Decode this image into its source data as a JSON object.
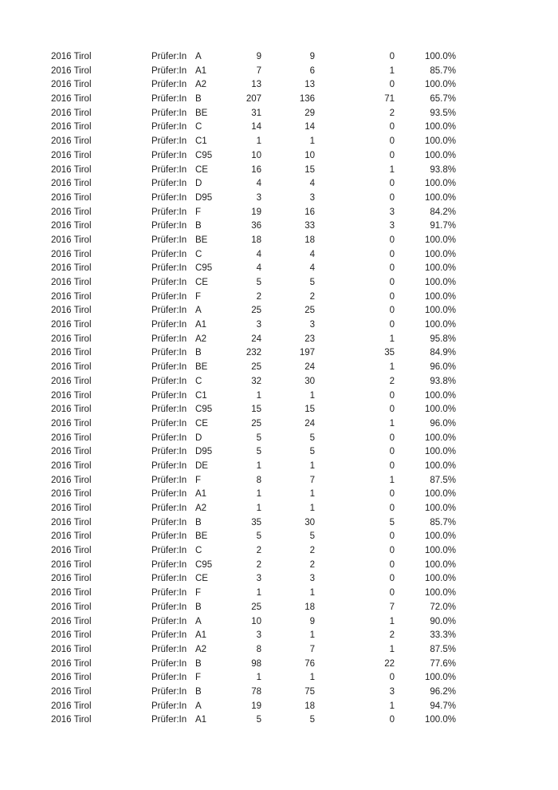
{
  "page": {
    "background_color": "#ffffff",
    "text_color": "#1d1d1d"
  },
  "table": {
    "columns": [
      "year_region",
      "examiner_label",
      "category",
      "num1",
      "num2",
      "num3",
      "percent"
    ],
    "rows": [
      [
        "2016 Tirol",
        "Prüfer:In",
        "A",
        "9",
        "9",
        "0",
        "100.0%"
      ],
      [
        "2016 Tirol",
        "Prüfer:In",
        "A1",
        "7",
        "6",
        "1",
        "85.7%"
      ],
      [
        "2016 Tirol",
        "Prüfer:In",
        "A2",
        "13",
        "13",
        "0",
        "100.0%"
      ],
      [
        "2016 Tirol",
        "Prüfer:In",
        "B",
        "207",
        "136",
        "71",
        "65.7%"
      ],
      [
        "2016 Tirol",
        "Prüfer:In",
        "BE",
        "31",
        "29",
        "2",
        "93.5%"
      ],
      [
        "2016 Tirol",
        "Prüfer:In",
        "C",
        "14",
        "14",
        "0",
        "100.0%"
      ],
      [
        "2016 Tirol",
        "Prüfer:In",
        "C1",
        "1",
        "1",
        "0",
        "100.0%"
      ],
      [
        "2016 Tirol",
        "Prüfer:In",
        "C95",
        "10",
        "10",
        "0",
        "100.0%"
      ],
      [
        "2016 Tirol",
        "Prüfer:In",
        "CE",
        "16",
        "15",
        "1",
        "93.8%"
      ],
      [
        "2016 Tirol",
        "Prüfer:In",
        "D",
        "4",
        "4",
        "0",
        "100.0%"
      ],
      [
        "2016 Tirol",
        "Prüfer:In",
        "D95",
        "3",
        "3",
        "0",
        "100.0%"
      ],
      [
        "2016 Tirol",
        "Prüfer:In",
        "F",
        "19",
        "16",
        "3",
        "84.2%"
      ],
      [
        "2016 Tirol",
        "Prüfer:In",
        "B",
        "36",
        "33",
        "3",
        "91.7%"
      ],
      [
        "2016 Tirol",
        "Prüfer:In",
        "BE",
        "18",
        "18",
        "0",
        "100.0%"
      ],
      [
        "2016 Tirol",
        "Prüfer:In",
        "C",
        "4",
        "4",
        "0",
        "100.0%"
      ],
      [
        "2016 Tirol",
        "Prüfer:In",
        "C95",
        "4",
        "4",
        "0",
        "100.0%"
      ],
      [
        "2016 Tirol",
        "Prüfer:In",
        "CE",
        "5",
        "5",
        "0",
        "100.0%"
      ],
      [
        "2016 Tirol",
        "Prüfer:In",
        "F",
        "2",
        "2",
        "0",
        "100.0%"
      ],
      [
        "2016 Tirol",
        "Prüfer:In",
        "A",
        "25",
        "25",
        "0",
        "100.0%"
      ],
      [
        "2016 Tirol",
        "Prüfer:In",
        "A1",
        "3",
        "3",
        "0",
        "100.0%"
      ],
      [
        "2016 Tirol",
        "Prüfer:In",
        "A2",
        "24",
        "23",
        "1",
        "95.8%"
      ],
      [
        "2016 Tirol",
        "Prüfer:In",
        "B",
        "232",
        "197",
        "35",
        "84.9%"
      ],
      [
        "2016 Tirol",
        "Prüfer:In",
        "BE",
        "25",
        "24",
        "1",
        "96.0%"
      ],
      [
        "2016 Tirol",
        "Prüfer:In",
        "C",
        "32",
        "30",
        "2",
        "93.8%"
      ],
      [
        "2016 Tirol",
        "Prüfer:In",
        "C1",
        "1",
        "1",
        "0",
        "100.0%"
      ],
      [
        "2016 Tirol",
        "Prüfer:In",
        "C95",
        "15",
        "15",
        "0",
        "100.0%"
      ],
      [
        "2016 Tirol",
        "Prüfer:In",
        "CE",
        "25",
        "24",
        "1",
        "96.0%"
      ],
      [
        "2016 Tirol",
        "Prüfer:In",
        "D",
        "5",
        "5",
        "0",
        "100.0%"
      ],
      [
        "2016 Tirol",
        "Prüfer:In",
        "D95",
        "5",
        "5",
        "0",
        "100.0%"
      ],
      [
        "2016 Tirol",
        "Prüfer:In",
        "DE",
        "1",
        "1",
        "0",
        "100.0%"
      ],
      [
        "2016 Tirol",
        "Prüfer:In",
        "F",
        "8",
        "7",
        "1",
        "87.5%"
      ],
      [
        "2016 Tirol",
        "Prüfer:In",
        "A1",
        "1",
        "1",
        "0",
        "100.0%"
      ],
      [
        "2016 Tirol",
        "Prüfer:In",
        "A2",
        "1",
        "1",
        "0",
        "100.0%"
      ],
      [
        "2016 Tirol",
        "Prüfer:In",
        "B",
        "35",
        "30",
        "5",
        "85.7%"
      ],
      [
        "2016 Tirol",
        "Prüfer:In",
        "BE",
        "5",
        "5",
        "0",
        "100.0%"
      ],
      [
        "2016 Tirol",
        "Prüfer:In",
        "C",
        "2",
        "2",
        "0",
        "100.0%"
      ],
      [
        "2016 Tirol",
        "Prüfer:In",
        "C95",
        "2",
        "2",
        "0",
        "100.0%"
      ],
      [
        "2016 Tirol",
        "Prüfer:In",
        "CE",
        "3",
        "3",
        "0",
        "100.0%"
      ],
      [
        "2016 Tirol",
        "Prüfer:In",
        "F",
        "1",
        "1",
        "0",
        "100.0%"
      ],
      [
        "2016 Tirol",
        "Prüfer:In",
        "B",
        "25",
        "18",
        "7",
        "72.0%"
      ],
      [
        "2016 Tirol",
        "Prüfer:In",
        "A",
        "10",
        "9",
        "1",
        "90.0%"
      ],
      [
        "2016 Tirol",
        "Prüfer:In",
        "A1",
        "3",
        "1",
        "2",
        "33.3%"
      ],
      [
        "2016 Tirol",
        "Prüfer:In",
        "A2",
        "8",
        "7",
        "1",
        "87.5%"
      ],
      [
        "2016 Tirol",
        "Prüfer:In",
        "B",
        "98",
        "76",
        "22",
        "77.6%"
      ],
      [
        "2016 Tirol",
        "Prüfer:In",
        "F",
        "1",
        "1",
        "0",
        "100.0%"
      ],
      [
        "2016 Tirol",
        "Prüfer:In",
        "B",
        "78",
        "75",
        "3",
        "96.2%"
      ],
      [
        "2016 Tirol",
        "Prüfer:In",
        "A",
        "19",
        "18",
        "1",
        "94.7%"
      ],
      [
        "2016 Tirol",
        "Prüfer:In",
        "A1",
        "5",
        "5",
        "0",
        "100.0%"
      ]
    ]
  }
}
